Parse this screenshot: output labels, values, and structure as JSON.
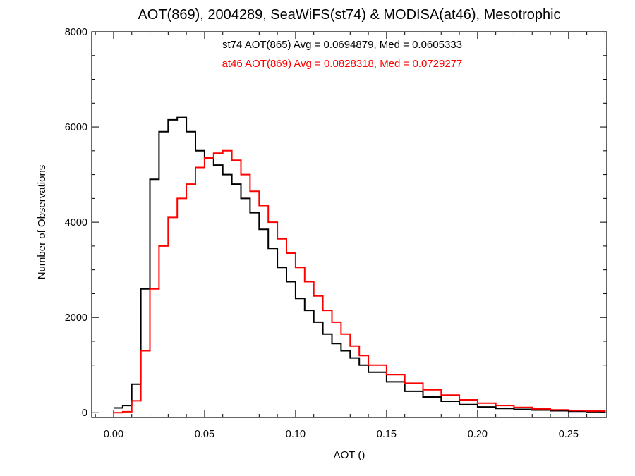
{
  "chart_data": {
    "type": "line",
    "title": "AOT(869), 2004289, SeaWiFS(st74) & MODISA(at46), Mesotrophic",
    "xlabel": "AOT ()",
    "ylabel": "Number of Observations",
    "xlim": [
      -0.012,
      0.271
    ],
    "ylim": [
      -100,
      8000
    ],
    "xticks": [
      0.0,
      0.05,
      0.1,
      0.15,
      0.2,
      0.25
    ],
    "xtick_labels": [
      "0.00",
      "0.05",
      "0.10",
      "0.15",
      "0.20",
      "0.25"
    ],
    "yticks": [
      0,
      2000,
      4000,
      6000,
      8000
    ],
    "ytick_labels": [
      "0",
      "2000",
      "4000",
      "6000",
      "8000"
    ],
    "grid": false,
    "step": true,
    "annotations": [
      {
        "text": "st74 AOT(865) Avg = 0.0694879, Med = 0.0605333",
        "color": "#000000"
      },
      {
        "text": "at46 AOT(869) Avg = 0.0828318, Med = 0.0729277",
        "color": "#ff0000"
      }
    ],
    "series": [
      {
        "color": "#000000",
        "x": [
          0.0,
          0.005,
          0.01,
          0.015,
          0.02,
          0.025,
          0.03,
          0.035,
          0.04,
          0.045,
          0.05,
          0.055,
          0.06,
          0.065,
          0.07,
          0.075,
          0.08,
          0.085,
          0.09,
          0.095,
          0.1,
          0.105,
          0.11,
          0.115,
          0.12,
          0.125,
          0.13,
          0.135,
          0.14,
          0.15,
          0.16,
          0.17,
          0.18,
          0.19,
          0.2,
          0.21,
          0.22,
          0.23,
          0.24,
          0.25,
          0.26,
          0.27
        ],
        "y": [
          100,
          150,
          600,
          2600,
          4900,
          5900,
          6150,
          6200,
          5900,
          5500,
          5350,
          5200,
          5000,
          4800,
          4500,
          4200,
          3850,
          3450,
          3050,
          2750,
          2400,
          2150,
          1900,
          1650,
          1450,
          1300,
          1150,
          1000,
          850,
          650,
          450,
          330,
          240,
          170,
          120,
          90,
          70,
          55,
          40,
          30,
          20,
          10
        ]
      },
      {
        "color": "#ff0000",
        "x": [
          0.0,
          0.005,
          0.01,
          0.015,
          0.02,
          0.025,
          0.03,
          0.035,
          0.04,
          0.045,
          0.05,
          0.055,
          0.06,
          0.065,
          0.07,
          0.075,
          0.08,
          0.085,
          0.09,
          0.095,
          0.1,
          0.105,
          0.11,
          0.115,
          0.12,
          0.125,
          0.13,
          0.135,
          0.14,
          0.15,
          0.16,
          0.17,
          0.18,
          0.19,
          0.2,
          0.21,
          0.22,
          0.23,
          0.24,
          0.25,
          0.26,
          0.27
        ],
        "y": [
          0,
          20,
          250,
          1300,
          2600,
          3500,
          4100,
          4500,
          4800,
          5150,
          5350,
          5450,
          5500,
          5300,
          5000,
          4650,
          4350,
          4000,
          3650,
          3350,
          3050,
          2750,
          2450,
          2150,
          1900,
          1650,
          1400,
          1200,
          1000,
          800,
          620,
          480,
          370,
          270,
          200,
          150,
          110,
          80,
          60,
          45,
          35,
          20
        ]
      }
    ]
  }
}
